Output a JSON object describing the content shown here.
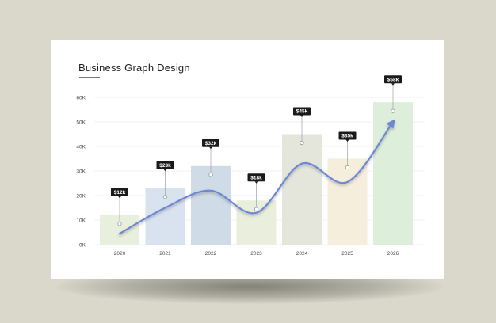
{
  "colors": {
    "background": "#d9d8cb",
    "card": "#ffffff",
    "trend_line": "#6d86d6",
    "label_box": "#1a1a1a"
  },
  "chart_data": {
    "type": "bar",
    "title": "Business Graph Design",
    "xlabel": "",
    "ylabel": "",
    "categories": [
      "2020",
      "2021",
      "2022",
      "2023",
      "2024",
      "2025",
      "2026"
    ],
    "values": [
      12,
      23,
      32,
      18,
      45,
      35,
      58
    ],
    "value_labels": [
      "$12k",
      "$23k",
      "$32k",
      "$18k",
      "$45k",
      "$35k",
      "$58k"
    ],
    "bar_colors": [
      "#e8efdc",
      "#d8e3ef",
      "#cfdbe6",
      "#e9efdc",
      "#e4e6dc",
      "#f5eedc",
      "#ddeeda"
    ],
    "yticks": [
      {
        "value": 0,
        "label": "0K"
      },
      {
        "value": 10,
        "label": "10K"
      },
      {
        "value": 20,
        "label": "20K"
      },
      {
        "value": 30,
        "label": "30K"
      },
      {
        "value": 40,
        "label": "40K"
      },
      {
        "value": 50,
        "label": "50K"
      },
      {
        "value": 60,
        "label": "60K"
      }
    ],
    "ylim": [
      0,
      60
    ],
    "grid": true,
    "trend_line": {
      "values": [
        4.5,
        15,
        22,
        13,
        33,
        25.5,
        50
      ],
      "arrow": true
    }
  }
}
